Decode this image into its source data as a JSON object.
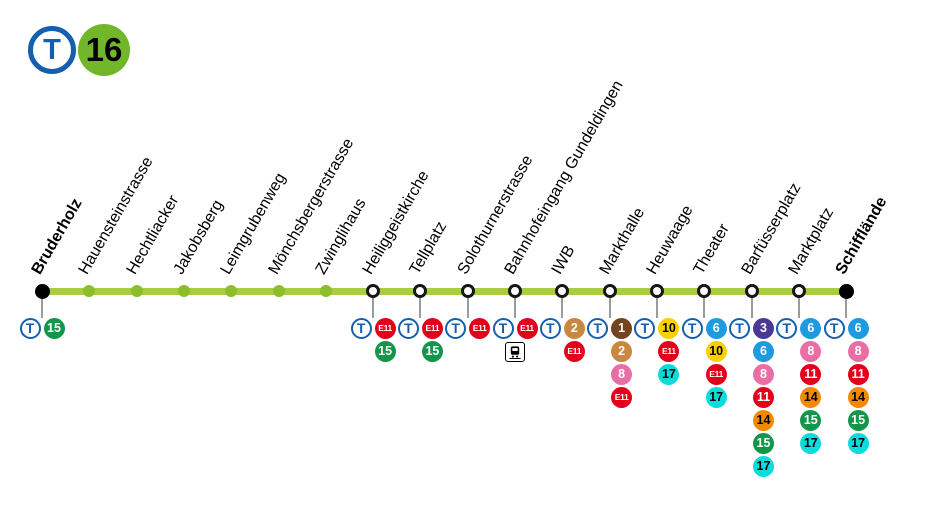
{
  "header": {
    "tram_logo": "T",
    "line_badge": "16"
  },
  "stop_symbol": "T",
  "rail_icon_label": "S-Bahn",
  "colors": {
    "route": "#a9cd3d",
    "minor_dot": "#8cbd2a",
    "tram_blue": "#155fad",
    "badge_16_bg": "#72b62a",
    "lines": {
      "1": {
        "bg": "#74431f",
        "fg": "#ffffff"
      },
      "2": {
        "bg": "#c9883f",
        "fg": "#ffffff"
      },
      "3": {
        "bg": "#4a3897",
        "fg": "#ffffff"
      },
      "6": {
        "bg": "#1e9be0",
        "fg": "#ffffff"
      },
      "8": {
        "bg": "#ea6ea6",
        "fg": "#ffffff"
      },
      "10": {
        "bg": "#fccf00",
        "fg": "#000000"
      },
      "11": {
        "bg": "#e2001a",
        "fg": "#ffffff"
      },
      "14": {
        "bg": "#f18a00",
        "fg": "#000000"
      },
      "15": {
        "bg": "#12964a",
        "fg": "#ffffff"
      },
      "17": {
        "bg": "#0bdbdb",
        "fg": "#000000"
      },
      "E11": {
        "bg": "#e2001a",
        "fg": "#ffffff"
      }
    }
  },
  "stations": [
    {
      "name": "Bruderholz",
      "type": "terminus",
      "connections": [
        "15"
      ],
      "rail": false
    },
    {
      "name": "Hauensteinstrasse",
      "type": "minor",
      "connections": [],
      "rail": false
    },
    {
      "name": "Hechtliacker",
      "type": "minor",
      "connections": [],
      "rail": false
    },
    {
      "name": "Jakobsberg",
      "type": "minor",
      "connections": [],
      "rail": false
    },
    {
      "name": "Leimgrubenweg",
      "type": "minor",
      "connections": [],
      "rail": false
    },
    {
      "name": "Mönchsbergerstrasse",
      "type": "minor",
      "connections": [],
      "rail": false
    },
    {
      "name": "Zwinglihaus",
      "type": "minor",
      "connections": [],
      "rail": false
    },
    {
      "name": "Heiliggeistkirche",
      "type": "interchange",
      "connections": [
        "E11",
        "15"
      ],
      "rail": false
    },
    {
      "name": "Tellplatz",
      "type": "interchange",
      "connections": [
        "E11",
        "15"
      ],
      "rail": false
    },
    {
      "name": "Solothurnerstrasse",
      "type": "interchange",
      "connections": [
        "E11"
      ],
      "rail": false
    },
    {
      "name": "Bahnhofeingang Gundeldingen",
      "type": "interchange",
      "connections": [
        "E11"
      ],
      "rail": true
    },
    {
      "name": "IWB",
      "type": "interchange",
      "connections": [
        "2",
        "E11"
      ],
      "rail": false
    },
    {
      "name": "Markthalle",
      "type": "interchange",
      "connections": [
        "1",
        "2",
        "8",
        "E11"
      ],
      "rail": false
    },
    {
      "name": "Heuwaage",
      "type": "interchange",
      "connections": [
        "10",
        "E11",
        "17"
      ],
      "rail": false
    },
    {
      "name": "Theater",
      "type": "interchange",
      "connections": [
        "6",
        "10",
        "E11",
        "17"
      ],
      "rail": false
    },
    {
      "name": "Barfüsserplatz",
      "type": "interchange",
      "connections": [
        "3",
        "6",
        "8",
        "11",
        "14",
        "15",
        "17"
      ],
      "rail": false
    },
    {
      "name": "Marktplatz",
      "type": "interchange",
      "connections": [
        "6",
        "8",
        "11",
        "14",
        "15",
        "17"
      ],
      "rail": false
    },
    {
      "name": "Schifflände",
      "type": "terminus",
      "connections": [
        "6",
        "8",
        "11",
        "14",
        "15",
        "17"
      ],
      "rail": false
    }
  ]
}
